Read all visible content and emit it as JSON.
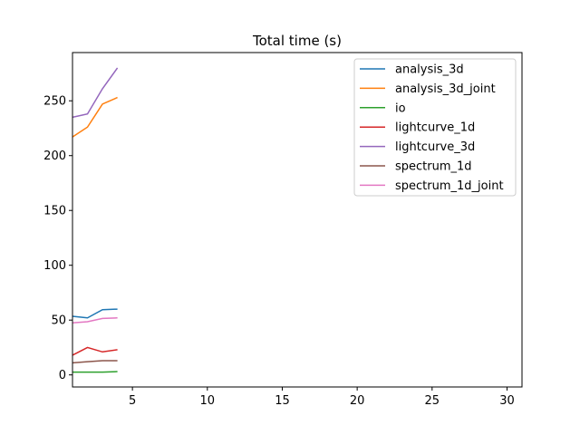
{
  "chart_data": {
    "type": "line",
    "title": "Total time (s)",
    "xlabel": "",
    "ylabel": "",
    "xlim": [
      1,
      31
    ],
    "ylim": [
      -11,
      294
    ],
    "xticks": [
      5,
      10,
      15,
      20,
      25,
      30
    ],
    "yticks": [
      0,
      50,
      100,
      150,
      200,
      250
    ],
    "grid": false,
    "legend_position": "top-right",
    "x": [
      1,
      2,
      3,
      4
    ],
    "series": [
      {
        "name": "analysis_3d",
        "color": "#1f77b4",
        "values": [
          53.5,
          52.0,
          59.5,
          60.0
        ]
      },
      {
        "name": "analysis_3d_joint",
        "color": "#ff7f0e",
        "values": [
          217,
          226,
          247,
          253
        ]
      },
      {
        "name": "io",
        "color": "#2ca02c",
        "values": [
          2.5,
          2.5,
          2.5,
          3.0
        ]
      },
      {
        "name": "lightcurve_1d",
        "color": "#d62728",
        "values": [
          18,
          25,
          21,
          23
        ]
      },
      {
        "name": "lightcurve_3d",
        "color": "#9467bd",
        "values": [
          235,
          238,
          261,
          280
        ]
      },
      {
        "name": "spectrum_1d",
        "color": "#8c564b",
        "values": [
          11,
          12,
          13,
          13
        ]
      },
      {
        "name": "spectrum_1d_joint",
        "color": "#e377c2",
        "values": [
          47.5,
          48.5,
          51.5,
          52.0
        ]
      }
    ]
  }
}
